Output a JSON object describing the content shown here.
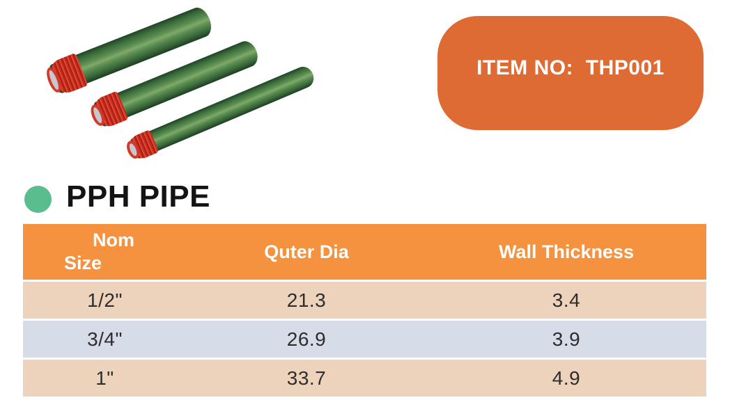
{
  "badge": {
    "label": "ITEM NO:  THP001",
    "bg_color": "#dd6b33",
    "text_color": "#ffffff"
  },
  "product_image": {
    "description": "three green PPH pipes with red threaded end caps",
    "pipe_color": "#4c7d45",
    "cap_color": "#d3392b"
  },
  "section": {
    "title": "PPH PIPE",
    "bullet_color": "#5abd8e"
  },
  "table": {
    "header_bg": "#f4923f",
    "row_colors": [
      "#eed3bc",
      "#d6dce8",
      "#eed3bc"
    ],
    "header": {
      "col1_line1": "Nom",
      "col1_line2": "Size",
      "col2": "Quter Dia",
      "col3": "Wall Thickness"
    },
    "rows": [
      {
        "nom_size": "1/2\"",
        "outer_dia": "21.3",
        "wall_thickness": "3.4"
      },
      {
        "nom_size": "3/4\"",
        "outer_dia": "26.9",
        "wall_thickness": "3.9"
      },
      {
        "nom_size": "1\"",
        "outer_dia": "33.7",
        "wall_thickness": "4.9"
      }
    ]
  }
}
